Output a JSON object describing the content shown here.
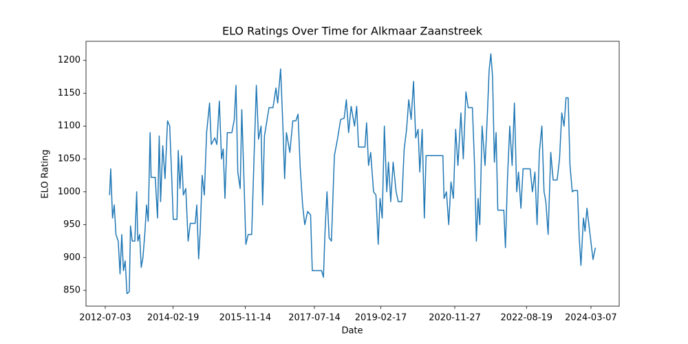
{
  "chart_data": {
    "type": "line",
    "title": "ELO Ratings Over Time for Alkmaar Zaanstreek",
    "x_label": "Date",
    "y_label": "ELO Rating",
    "xlim": [
      "2012-01-16",
      "2024-11-10"
    ],
    "ylim": [
      826,
      1229
    ],
    "xticks": [
      "2012-07-03",
      "2014-02-19",
      "2015-11-14",
      "2017-07-14",
      "2019-02-17",
      "2020-11-27",
      "2022-08-19",
      "2024-03-07"
    ],
    "yticks": [
      850,
      900,
      950,
      1000,
      1050,
      1100,
      1150,
      1200
    ],
    "x": [
      "2012-08-10",
      "2012-08-20",
      "2012-09-05",
      "2012-09-20",
      "2012-10-05",
      "2012-10-25",
      "2012-11-10",
      "2012-11-25",
      "2012-12-10",
      "2012-12-25",
      "2013-01-10",
      "2013-01-30",
      "2013-02-10",
      "2013-02-25",
      "2013-03-20",
      "2013-04-05",
      "2013-04-15",
      "2013-05-01",
      "2013-05-15",
      "2013-05-30",
      "2013-06-15",
      "2013-07-01",
      "2013-07-15",
      "2013-08-01",
      "2013-08-10",
      "2013-09-15",
      "2013-10-05",
      "2013-10-20",
      "2013-11-01",
      "2013-11-20",
      "2013-12-10",
      "2014-01-01",
      "2014-01-20",
      "2014-02-05",
      "2014-02-20",
      "2014-03-25",
      "2014-04-05",
      "2014-04-20",
      "2014-05-05",
      "2014-05-20",
      "2014-06-10",
      "2014-07-01",
      "2014-07-20",
      "2014-09-01",
      "2014-09-15",
      "2014-10-01",
      "2014-10-15",
      "2014-11-01",
      "2014-11-20",
      "2014-12-10",
      "2015-01-05",
      "2015-01-20",
      "2015-02-20",
      "2015-03-10",
      "2015-04-01",
      "2015-04-20",
      "2015-05-05",
      "2015-05-20",
      "2015-06-10",
      "2015-07-20",
      "2015-08-10",
      "2015-08-25",
      "2015-09-10",
      "2015-10-01",
      "2015-10-15",
      "2015-11-01",
      "2015-11-20",
      "2015-12-10",
      "2016-01-10",
      "2016-02-01",
      "2016-02-20",
      "2016-03-10",
      "2016-04-01",
      "2016-04-15",
      "2016-05-01",
      "2016-06-10",
      "2016-07-15",
      "2016-08-10",
      "2016-08-25",
      "2016-09-20",
      "2016-10-10",
      "2016-10-25",
      "2016-11-10",
      "2016-12-10",
      "2017-01-05",
      "2017-02-01",
      "2017-02-20",
      "2017-03-10",
      "2017-04-01",
      "2017-04-20",
      "2017-05-15",
      "2017-06-10",
      "2017-06-25",
      "2017-09-15",
      "2017-10-01",
      "2017-10-15",
      "2017-11-01",
      "2017-11-20",
      "2017-12-10",
      "2018-01-05",
      "2018-02-01",
      "2018-03-01",
      "2018-04-01",
      "2018-04-20",
      "2018-05-10",
      "2018-06-01",
      "2018-07-01",
      "2018-07-20",
      "2018-08-05",
      "2018-09-30",
      "2018-10-15",
      "2018-11-01",
      "2018-11-20",
      "2018-12-15",
      "2019-01-05",
      "2019-01-25",
      "2019-02-10",
      "2019-03-01",
      "2019-03-20",
      "2019-04-10",
      "2019-04-25",
      "2019-05-15",
      "2019-06-05",
      "2019-07-01",
      "2019-07-20",
      "2019-08-20",
      "2019-09-10",
      "2019-10-01",
      "2019-10-20",
      "2019-11-10",
      "2019-12-01",
      "2019-12-20",
      "2020-01-10",
      "2020-01-25",
      "2020-02-15",
      "2020-03-05",
      "2020-03-20",
      "2020-08-15",
      "2020-08-25",
      "2020-09-15",
      "2020-10-05",
      "2020-10-25",
      "2020-11-15",
      "2020-12-05",
      "2020-12-25",
      "2021-01-20",
      "2021-02-10",
      "2021-03-05",
      "2021-03-25",
      "2021-05-01",
      "2021-05-20",
      "2021-06-05",
      "2021-06-20",
      "2021-07-05",
      "2021-07-25",
      "2021-08-20",
      "2021-09-10",
      "2021-09-25",
      "2021-10-10",
      "2021-10-25",
      "2021-11-10",
      "2021-11-25",
      "2021-12-10",
      "2022-02-01",
      "2022-02-15",
      "2022-03-05",
      "2022-03-25",
      "2022-04-15",
      "2022-05-05",
      "2022-05-25",
      "2022-06-10",
      "2022-07-01",
      "2022-07-20",
      "2022-09-20",
      "2022-10-10",
      "2022-11-01",
      "2022-11-20",
      "2022-12-10",
      "2023-01-01",
      "2023-01-20",
      "2023-02-05",
      "2023-02-25",
      "2023-03-20",
      "2023-04-10",
      "2023-05-15",
      "2023-06-05",
      "2023-06-25",
      "2023-07-15",
      "2023-08-01",
      "2023-08-20",
      "2023-09-05",
      "2023-09-25",
      "2023-10-10",
      "2023-11-10",
      "2023-11-25",
      "2023-12-10",
      "2024-01-01",
      "2024-01-15",
      "2024-02-01",
      "2024-03-25",
      "2024-04-15"
    ],
    "series": [
      {
        "name": "ELO Rating",
        "color": "#1f77b4",
        "values": [
          995,
          1035,
          960,
          980,
          935,
          925,
          875,
          935,
          880,
          895,
          845,
          848,
          948,
          925,
          925,
          1000,
          925,
          935,
          885,
          900,
          935,
          980,
          955,
          1090,
          1022,
          1022,
          960,
          1085,
          985,
          1070,
          1020,
          1108,
          1100,
          1030,
          958,
          958,
          1063,
          1005,
          1055,
          995,
          1005,
          925,
          952,
          952,
          980,
          898,
          940,
          1025,
          995,
          1090,
          1135,
          1072,
          1082,
          1072,
          1138,
          1050,
          1065,
          990,
          1090,
          1090,
          1110,
          1162,
          1030,
          1005,
          1125,
          1030,
          920,
          935,
          935,
          1060,
          1162,
          1080,
          1100,
          980,
          1085,
          1128,
          1128,
          1158,
          1135,
          1187,
          1100,
          1020,
          1090,
          1060,
          1108,
          1108,
          1118,
          1040,
          980,
          950,
          970,
          965,
          880,
          880,
          870,
          940,
          1000,
          930,
          925,
          1055,
          1080,
          1110,
          1112,
          1140,
          1090,
          1130,
          1100,
          1130,
          1068,
          1068,
          1105,
          1040,
          1060,
          1000,
          995,
          920,
          990,
          960,
          1100,
          1000,
          1045,
          985,
          1045,
          1000,
          985,
          985,
          1065,
          1095,
          1140,
          1110,
          1168,
          1082,
          1095,
          1030,
          1095,
          960,
          1055,
          1055,
          990,
          1000,
          950,
          1015,
          990,
          1095,
          1040,
          1120,
          1050,
          1152,
          1128,
          1128,
          1040,
          925,
          990,
          950,
          1100,
          1040,
          1120,
          1185,
          1210,
          1175,
          1045,
          1090,
          972,
          972,
          915,
          1020,
          1100,
          1040,
          1135,
          1000,
          1030,
          975,
          1035,
          1035,
          1000,
          1030,
          950,
          1060,
          1100,
          1000,
          985,
          935,
          1060,
          1018,
          1018,
          1050,
          1120,
          1100,
          1143,
          1143,
          1040,
          1000,
          1002,
          1002,
          930,
          888,
          960,
          940,
          975,
          897,
          915
        ]
      }
    ]
  }
}
